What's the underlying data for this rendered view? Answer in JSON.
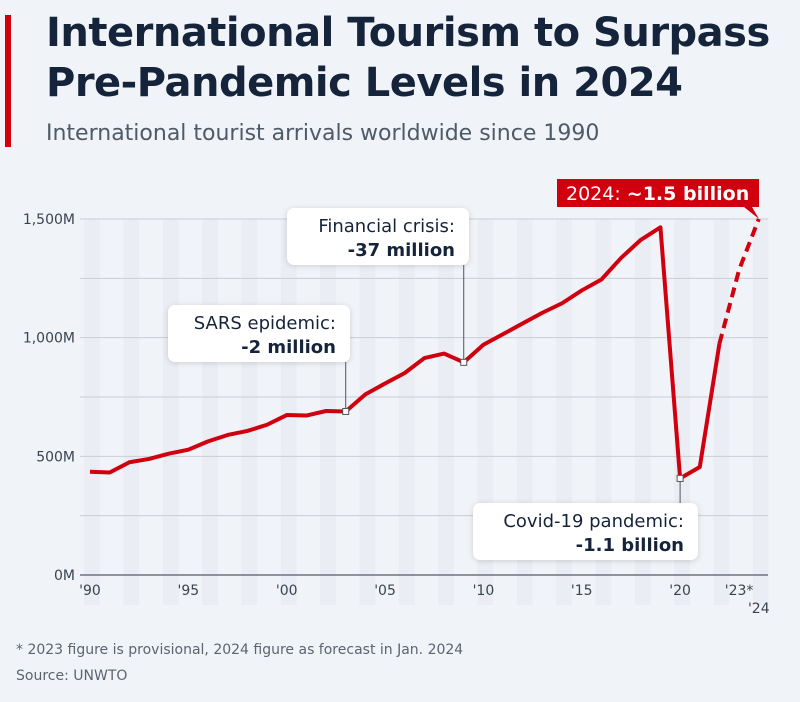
{
  "header": {
    "title_line1": "International Tourism to Surpass",
    "title_line2": "Pre-Pandemic Levels in 2024",
    "subtitle": "International tourist arrivals worldwide since 1990"
  },
  "footer": {
    "note": "* 2023 figure is provisional, 2024 figure as forecast in Jan. 2024",
    "source": "Source: UNWTO"
  },
  "colors": {
    "line": "#d0000f",
    "title": "#15243a",
    "grid": "#c9ced6"
  },
  "chart_data": {
    "type": "line",
    "title": "International tourist arrivals worldwide since 1990",
    "xlabel": "",
    "ylabel": "",
    "ylim": [
      0,
      1500
    ],
    "yticks": [
      0,
      500,
      1000,
      1500
    ],
    "ytick_labels": [
      "0M",
      "500M",
      "1,000M",
      "1,500M"
    ],
    "xticks": [
      1990,
      1995,
      2000,
      2005,
      2010,
      2015,
      2020,
      2023,
      2024
    ],
    "xtick_labels": [
      "'90",
      "'95",
      "'00",
      "'05",
      "'10",
      "'15",
      "'20",
      "'23*",
      "'24"
    ],
    "grid": true,
    "x": [
      1990,
      1991,
      1992,
      1993,
      1994,
      1995,
      1996,
      1997,
      1998,
      1999,
      2000,
      2001,
      2002,
      2003,
      2004,
      2005,
      2006,
      2007,
      2008,
      2009,
      2010,
      2011,
      2012,
      2013,
      2014,
      2015,
      2016,
      2017,
      2018,
      2019,
      2020,
      2021,
      2022,
      2023,
      2024
    ],
    "series": [
      {
        "name": "International tourist arrivals (millions)",
        "values": [
          435,
          432,
          475,
          489,
          511,
          528,
          563,
          590,
          607,
          633,
          674,
          672,
          691,
          689,
          761,
          807,
          851,
          914,
          933,
          896,
          970,
          1015,
          1060,
          1105,
          1145,
          1199,
          1245,
          1336,
          1412,
          1465,
          407,
          455,
          975,
          1286,
          1500
        ],
        "dashed_from": 2022
      }
    ],
    "annotations": [
      {
        "x": 2003,
        "line1": "SARS epidemic:",
        "line2": "-2 million"
      },
      {
        "x": 2009,
        "line1": "Financial crisis:",
        "line2": "-37 million"
      },
      {
        "x": 2020,
        "line1": "Covid-19 pandemic:",
        "line2": "-1.1 billion"
      },
      {
        "x": 2024,
        "prefix": "2024:",
        "value": "~1.5 billion"
      }
    ]
  }
}
